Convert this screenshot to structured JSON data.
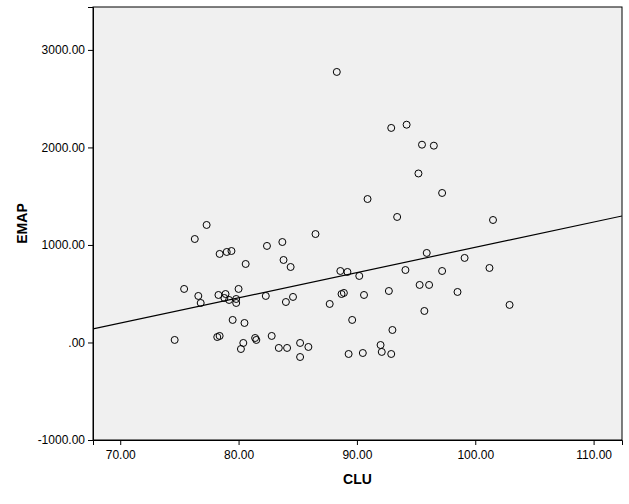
{
  "chart_data": {
    "type": "scatter",
    "x_label": "CLU",
    "y_label": "EMAP",
    "marker": "circle-open",
    "color": "#000000",
    "x": [
      74.6,
      75.4,
      76.3,
      76.6,
      76.8,
      77.3,
      78.3,
      78.2,
      78.4,
      78.4,
      78.8,
      78.9,
      79.0,
      79.2,
      79.4,
      79.5,
      79.8,
      79.8,
      80.0,
      80.2,
      80.4,
      80.5,
      80.6,
      81.4,
      81.5,
      82.3,
      82.4,
      82.8,
      83.4,
      83.7,
      83.8,
      84.0,
      84.1,
      84.4,
      84.6,
      85.2,
      85.2,
      85.9,
      86.5,
      87.7,
      88.3,
      88.6,
      88.7,
      88.9,
      89.2,
      89.3,
      89.6,
      90.2,
      90.6,
      90.5,
      90.9,
      92.0,
      92.1,
      92.7,
      92.9,
      93.0,
      92.9,
      93.4,
      94.1,
      94.2,
      95.2,
      95.3,
      95.5,
      95.7,
      95.9,
      96.1,
      96.5,
      97.2,
      97.2,
      98.5,
      99.1,
      101.2,
      101.5,
      102.9
    ],
    "values": [
      26,
      549,
      1061,
      477,
      405,
      1205,
      487,
      56,
      67,
      908,
      456,
      497,
      928,
      436,
      938,
      231,
      405,
      446,
      549,
      -67,
      -5,
      200,
      805,
      46,
      26,
      477,
      990,
      67,
      -56,
      1030,
      846,
      415,
      -56,
      774,
      467,
      -5,
      -149,
      -46,
      1112,
      395,
      2774,
      733,
      497,
      508,
      723,
      -118,
      231,
      682,
      487,
      -108,
      1471,
      -26,
      -97,
      528,
      2200,
      128,
      -118,
      1287,
      743,
      2233,
      1733,
      590,
      2028,
      323,
      918,
      590,
      2018,
      733,
      1533,
      518,
      867,
      764,
      1256,
      385
    ],
    "trend_line": {
      "x": [
        67.7,
        112.4
      ],
      "values": [
        139,
        1297
      ]
    },
    "xlim": [
      67.7,
      112.4
    ],
    "ylim": [
      -1000,
      3440
    ],
    "xticks": [
      {
        "value": 70,
        "label": "70.00"
      },
      {
        "value": 80,
        "label": "80.00"
      },
      {
        "value": 90,
        "label": "90.00"
      },
      {
        "value": 100,
        "label": "100.00"
      },
      {
        "value": 110,
        "label": "110.00"
      }
    ],
    "yticks": [
      {
        "value": -1000,
        "label": "-1000.00"
      },
      {
        "value": 0,
        "label": ".00"
      },
      {
        "value": 1000,
        "label": "1000.00"
      },
      {
        "value": 2000,
        "label": "2000.00"
      },
      {
        "value": 3000,
        "label": "3000.00"
      }
    ],
    "grid": false
  }
}
